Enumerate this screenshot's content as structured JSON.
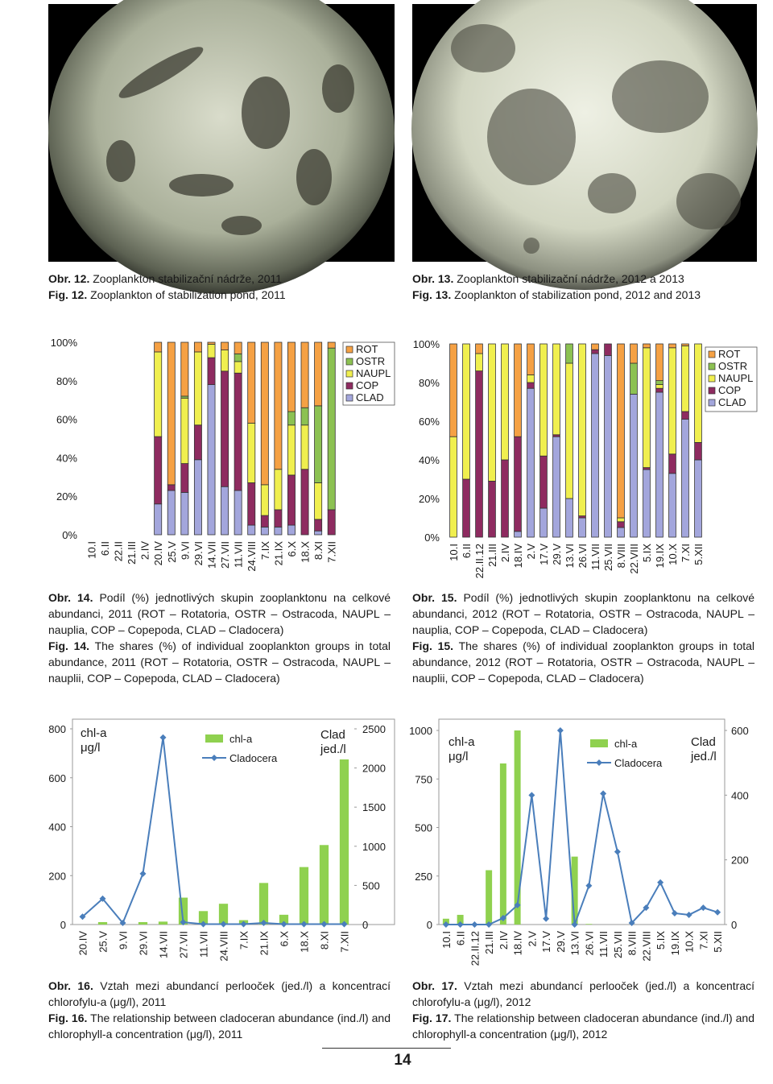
{
  "photo_captions": [
    {
      "cz_label": "Obr. 12.",
      "cz_text": "Zooplankton stabilizační nádrže, 2011",
      "en_label": "Fig. 12.",
      "en_text": "Zooplankton of stabilization pond, 2011"
    },
    {
      "cz_label": "Obr. 13.",
      "cz_text": "Zooplankton stabilizační nádrže, 2012 a 2013",
      "en_label": "Fig. 13.",
      "en_text": "Zooplankton of stabilization pond, 2012 and 2013"
    }
  ],
  "chart_captions": [
    {
      "cz_label": "Obr. 14.",
      "cz_text": "Podíl (%) jednotlivých skupin zooplanktonu na celkové abundanci, 2011 (ROT – Rotatoria, OSTR – Ostracoda, NAUPL – nauplia, COP – Copepoda, CLAD – Cladocera)",
      "en_label": "Fig. 14.",
      "en_text": "The shares (%) of individual zooplankton groups in total abundance, 2011 (ROT – Rotatoria, OSTR – Ostracoda, NAUPL – nauplii, COP – Copepoda, CLAD – Cladocera)"
    },
    {
      "cz_label": "Obr. 15.",
      "cz_text": "Podíl (%) jednotlivých skupin zooplanktonu na celkové abundanci, 2012 (ROT – Rotatoria, OSTR – Ostracoda, NAUPL – nauplia, COP – Copepoda, CLAD – Cladocera)",
      "en_label": "Fig. 15.",
      "en_text": "The shares (%) of individual zooplankton groups in total abundance, 2012 (ROT – Rotatoria, OSTR – Ostracoda, NAUPL – nauplii, COP – Copepoda, CLAD – Cladocera)"
    },
    {
      "cz_label": "Obr. 16.",
      "cz_text": "Vztah mezi abundancí perlooček (jed./l) a koncentrací chlorofylu-a (μg/l), 2011",
      "en_label": "Fig. 16.",
      "en_text": "The relationship between cladoceran abundance (ind./l) and chlorophyll-a concentration (μg/l), 2011"
    },
    {
      "cz_label": "Obr. 17.",
      "cz_text": "Vztah mezi abundancí perlooček (jed./l) a koncentrací chlorofylu-a (μg/l), 2012",
      "en_label": "Fig. 17.",
      "en_text": "The relationship between cladoceran abundance (ind./l) and chlorophyll-a concentration (μg/l), 2012"
    }
  ],
  "page_number": "14",
  "chart_data": [
    {
      "type": "bar",
      "stacked": true,
      "categories": [
        "10.I",
        "6.II",
        "22.II",
        "21.III",
        "2.IV",
        "20.IV",
        "25.V",
        "9.VI",
        "29.VI",
        "14.VII",
        "27.VII",
        "11.VII",
        "24.VIII",
        "7.IX",
        "21.IX",
        "6.X",
        "18.X",
        "8.XI",
        "7.XII"
      ],
      "ylim": [
        0,
        100
      ],
      "yticks": [
        {
          "value": 0,
          "label": "0%"
        },
        {
          "value": 20,
          "label": "20%"
        },
        {
          "value": 40,
          "label": "40%"
        },
        {
          "value": 60,
          "label": "60%"
        },
        {
          "value": 80,
          "label": "80%"
        },
        {
          "value": 100,
          "label": "100%"
        }
      ],
      "legend": "upper right",
      "series": [
        {
          "name": "ROT",
          "color": "#f5a144",
          "values": [
            null,
            null,
            null,
            null,
            null,
            5,
            74,
            28,
            5,
            1,
            4,
            6,
            42,
            74,
            66,
            36,
            34,
            33,
            3
          ]
        },
        {
          "name": "OSTR",
          "color": "#8cc152",
          "values": [
            null,
            null,
            null,
            null,
            null,
            0,
            0,
            1,
            0,
            0,
            0,
            4,
            0,
            0,
            0,
            7,
            9,
            40,
            84
          ]
        },
        {
          "name": "NAUPL",
          "color": "#f0ef4f",
          "values": [
            null,
            null,
            null,
            null,
            null,
            44,
            0,
            34,
            38,
            7,
            11,
            6,
            31,
            16,
            21,
            26,
            23,
            19,
            0
          ]
        },
        {
          "name": "COP",
          "color": "#8e2b60",
          "values": [
            null,
            null,
            null,
            null,
            null,
            35,
            3,
            15,
            18,
            14,
            60,
            61,
            22,
            6,
            9,
            26,
            34,
            6,
            13
          ]
        },
        {
          "name": "CLAD",
          "color": "#a3a6dc",
          "values": [
            null,
            null,
            null,
            null,
            null,
            16,
            23,
            22,
            39,
            78,
            25,
            23,
            5,
            4,
            4,
            5,
            0,
            2,
            0
          ]
        }
      ]
    },
    {
      "type": "bar",
      "stacked": true,
      "categories": [
        "10.I",
        "6.II",
        "22.II.12",
        "21.III",
        "2.IV",
        "18.IV",
        "2.V",
        "17.V",
        "29.V",
        "13.VI",
        "26.VI",
        "11.VII",
        "25.VII",
        "8.VIII",
        "22.VIII",
        "5.IX",
        "19.IX",
        "10.X",
        "7.XI",
        "5.XII"
      ],
      "ylim": [
        0,
        100
      ],
      "yticks": [
        {
          "value": 0,
          "label": "0%"
        },
        {
          "value": 20,
          "label": "20%"
        },
        {
          "value": 40,
          "label": "40%"
        },
        {
          "value": 60,
          "label": "60%"
        },
        {
          "value": 80,
          "label": "80%"
        },
        {
          "value": 100,
          "label": "100%"
        }
      ],
      "legend": "upper right",
      "series": [
        {
          "name": "ROT",
          "color": "#f5a144",
          "values": [
            48,
            0,
            5,
            0,
            0,
            48,
            16,
            0,
            0,
            0,
            0,
            3,
            0,
            90,
            10,
            2,
            19,
            2,
            1,
            0
          ]
        },
        {
          "name": "OSTR",
          "color": "#8cc152",
          "values": [
            0,
            0,
            0,
            0,
            0,
            0,
            0,
            0,
            0,
            10,
            0,
            0,
            0,
            0,
            16,
            0,
            2,
            0,
            0,
            0
          ]
        },
        {
          "name": "NAUPL",
          "color": "#f0ef4f",
          "values": [
            52,
            70,
            9,
            71,
            60,
            0,
            4,
            58,
            47,
            70,
            89,
            0,
            0,
            2,
            0,
            62,
            2,
            55,
            34,
            51
          ]
        },
        {
          "name": "COP",
          "color": "#8e2b60",
          "values": [
            0,
            30,
            86,
            29,
            40,
            49,
            3,
            27,
            1,
            0,
            1,
            2,
            6,
            3,
            0,
            1,
            2,
            10,
            4,
            9
          ]
        },
        {
          "name": "CLAD",
          "color": "#a3a6dc",
          "values": [
            0,
            0,
            0,
            0,
            0,
            3,
            77,
            15,
            52,
            20,
            10,
            95,
            94,
            5,
            74,
            35,
            75,
            33,
            61,
            40
          ]
        }
      ]
    },
    {
      "type": "combo",
      "categories": [
        "20.IV",
        "25.V",
        "9.VI",
        "29.VI",
        "14.VII",
        "27.VII",
        "11.VII",
        "24.VIII",
        "7.IX",
        "21.IX",
        "6.X",
        "18.X",
        "8.XI",
        "7.XII"
      ],
      "y_label": "chl-a μg/l",
      "y2_label": "Clad jed./l",
      "ylim": [
        0,
        800
      ],
      "yticks": [
        0,
        200,
        400,
        600,
        800
      ],
      "y2lim": [
        0,
        2500
      ],
      "y2ticks": [
        0,
        500,
        1000,
        1500,
        2000,
        2500
      ],
      "legend": "upper center",
      "series": [
        {
          "name": "chl-a",
          "type": "bar",
          "color": "#8fd14f",
          "values": [
            0,
            10,
            0,
            10,
            12,
            110,
            55,
            85,
            18,
            170,
            40,
            235,
            325,
            675
          ]
        },
        {
          "name": "Cladocera",
          "type": "line",
          "axis": "y2",
          "color": "#4a7ebb",
          "values": [
            100,
            330,
            20,
            650,
            2390,
            30,
            5,
            5,
            5,
            20,
            5,
            5,
            5,
            5
          ]
        }
      ]
    },
    {
      "type": "combo",
      "categories": [
        "10.I",
        "6.II",
        "22.II.12",
        "21.III",
        "2.IV",
        "18.IV",
        "2.V",
        "17.V",
        "29.V",
        "13.VI",
        "26.VI",
        "11.VII",
        "25.VII",
        "8.VIII",
        "22.VIII",
        "5.IX",
        "19.IX",
        "10.X",
        "7.XI",
        "5.XII"
      ],
      "y_label": "chl-a μg/l",
      "y2_label": "Clad jed./l",
      "ylim": [
        0,
        1000
      ],
      "yticks": [
        0,
        250,
        500,
        750,
        1000
      ],
      "y2lim": [
        0,
        600
      ],
      "y2ticks": [
        0,
        200,
        400,
        600
      ],
      "legend": "upper center",
      "series": [
        {
          "name": "chl-a",
          "type": "bar",
          "color": "#8fd14f",
          "values": [
            30,
            50,
            0,
            280,
            830,
            1000,
            0,
            0,
            0,
            350,
            3,
            0,
            0,
            0,
            0,
            0,
            0,
            0,
            0,
            0
          ]
        },
        {
          "name": "Cladocera",
          "type": "line",
          "axis": "y2",
          "color": "#4a7ebb",
          "values": [
            0,
            0,
            0,
            0,
            20,
            60,
            400,
            18,
            600,
            0,
            120,
            405,
            225,
            5,
            52,
            130,
            35,
            30,
            52,
            38
          ]
        }
      ]
    }
  ]
}
